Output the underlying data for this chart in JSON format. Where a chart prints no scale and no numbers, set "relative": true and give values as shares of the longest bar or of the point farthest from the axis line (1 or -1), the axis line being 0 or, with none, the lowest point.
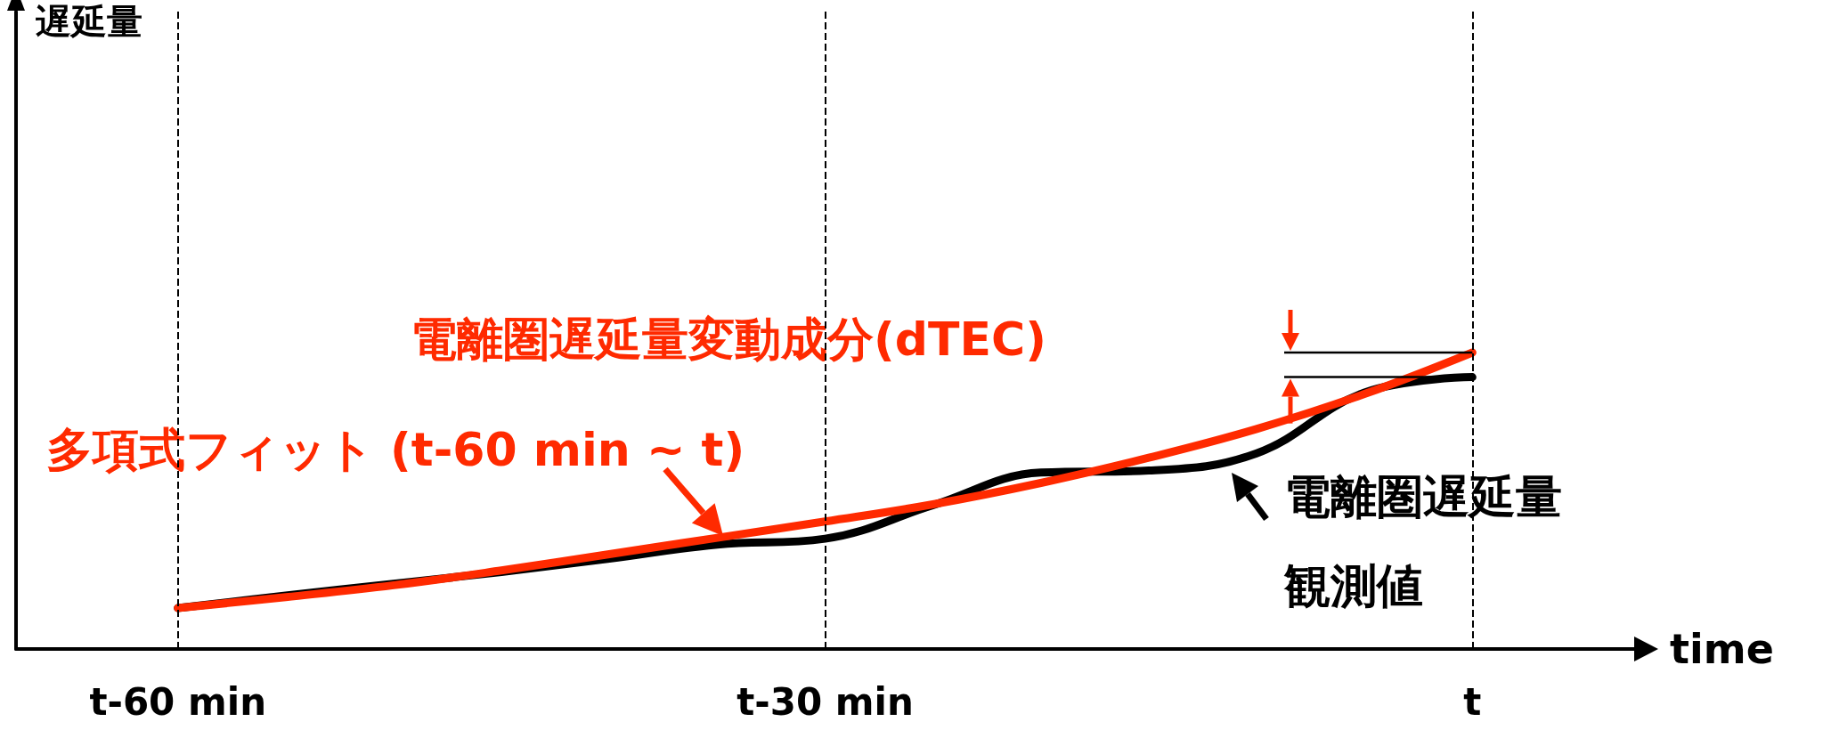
{
  "chart_data": {
    "type": "line",
    "relative": true,
    "xlabel": "time",
    "categories": [
      null,
      "t-60 min",
      null,
      null,
      null,
      null,
      null,
      "t-30 min",
      null,
      null,
      null,
      null,
      null,
      "t",
      null
    ],
    "marker": "none",
    "line_style": "solid",
    "series": [
      {
        "name": "電離圏遅延量観測値",
        "color": "#000000",
        "values": [
          null,
          0.138,
          0.18,
          0.22,
          0.26,
          0.305,
          0.352,
          0.372,
          0.485,
          0.595,
          0.602,
          0.66,
          0.865,
          0.917,
          null
        ]
      },
      {
        "name": "多項式フィット (t-60 min ~ t)",
        "type": "line",
        "color": "#ff2a00",
        "values": [
          null,
          0.138,
          0.175,
          0.215,
          0.265,
          0.32,
          0.375,
          0.43,
          0.488,
          0.56,
          0.645,
          0.742,
          0.86,
          1,
          null
        ]
      }
    ],
    "ref_lines": [
      {
        "axis": "x",
        "value": "t-60 min",
        "line_style": "dashed",
        "color": "#000000"
      },
      {
        "axis": "x",
        "value": "t-30 min",
        "line_style": "dashed",
        "color": "#000000"
      },
      {
        "axis": "x",
        "value": "t",
        "line_style": "dashed",
        "color": "#000000"
      }
    ],
    "annotations": [
      "電離圏遅延量変動成分(dTEC)",
      "遅延量"
    ]
  }
}
